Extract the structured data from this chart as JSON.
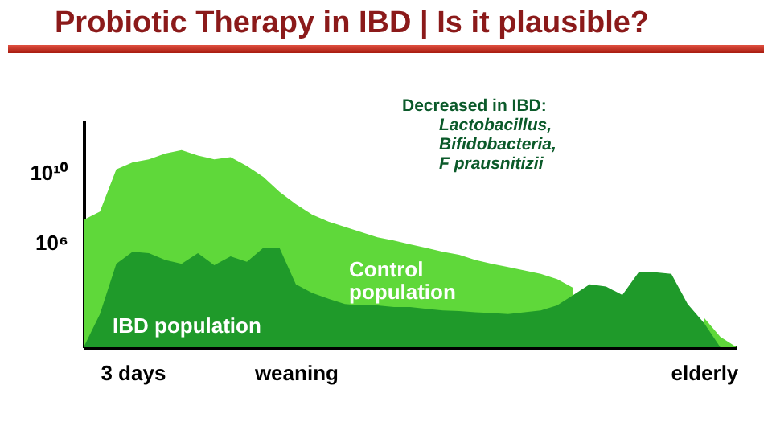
{
  "chart_data": {
    "type": "area",
    "title": "Probiotic Therapy in IBD | Is it plausible?",
    "annotations": [
      "Decreased in IBD:",
      "Lactobacillus,",
      "Bifidobacteria,",
      "F prausnitizii"
    ],
    "log": "y",
    "grid": false,
    "categories": [
      null,
      null,
      null,
      "3 days",
      null,
      null,
      null,
      null,
      null,
      null,
      null,
      null,
      null,
      "weaning",
      null,
      null,
      null,
      null,
      null,
      null,
      null,
      null,
      null,
      null,
      null,
      null,
      null,
      null,
      null,
      null,
      null,
      null,
      null,
      null,
      null,
      null,
      null,
      null,
      "elderly",
      null,
      null
    ],
    "ylim": [
      1,
      10000000000000.0
    ],
    "yticks": [
      {
        "value": 1000000.0,
        "label": "10⁶"
      },
      {
        "value": 10000000000.0,
        "label": "10¹⁰"
      }
    ],
    "series": [
      {
        "name": "Control population",
        "color": "#5fd83a",
        "values": [
          20000000.0,
          60000000.0,
          16000000000.0,
          40000000000.0,
          60000000000.0,
          130000000000.0,
          200000000000.0,
          100000000000.0,
          60000000000.0,
          80000000000.0,
          25000000000.0,
          6000000000.0,
          800000000.0,
          160000000.0,
          40000000.0,
          16000000.0,
          8000000.0,
          4000000.0,
          2000000.0,
          1300000.0,
          800000.0,
          500000.0,
          300000.0,
          200000.0,
          100000.0,
          60000.0,
          40000.0,
          25000.0,
          16000.0,
          8000,
          2500,
          null,
          null,
          null,
          null,
          null,
          null,
          null,
          50,
          4,
          1
        ]
      },
      {
        "name": "IBD population",
        "color": "#1f9a2a",
        "values": [
          1,
          80,
          60000.0,
          300000.0,
          250000.0,
          100000.0,
          60000.0,
          250000.0,
          50000.0,
          160000.0,
          80000.0,
          500000.0,
          500000.0,
          4000,
          1300,
          600,
          300,
          250,
          250,
          200,
          200,
          160,
          130,
          120,
          100,
          90,
          80,
          100,
          130,
          250,
          1000,
          4000,
          3000,
          1000,
          20000.0,
          20000.0,
          16000.0,
          300,
          25,
          1,
          1
        ]
      }
    ]
  }
}
